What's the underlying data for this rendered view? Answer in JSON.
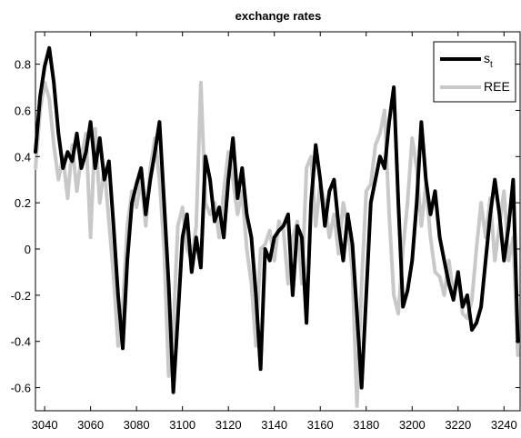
{
  "chart_data": {
    "type": "line",
    "title": "exchange rates",
    "xlabel": "",
    "ylabel": "",
    "xlim": [
      3036,
      3247
    ],
    "ylim": [
      -0.7,
      0.94
    ],
    "x_ticks": [
      3040,
      3060,
      3080,
      3100,
      3120,
      3140,
      3160,
      3180,
      3200,
      3220,
      3240
    ],
    "y_ticks": [
      -0.6,
      -0.4,
      -0.2,
      0,
      0.2,
      0.4,
      0.6,
      0.8
    ],
    "y_tick_labels": [
      "-0.6",
      "-0.4",
      "-0.2",
      "0",
      "0.2",
      "0.4",
      "0.6",
      "0.8"
    ],
    "grid": false,
    "legend_position": "top-right",
    "series": [
      {
        "name": "s",
        "name_subscript": "t",
        "color": "#000000",
        "x": [
          3036,
          3038,
          3040,
          3042,
          3044,
          3046,
          3048,
          3050,
          3052,
          3054,
          3056,
          3058,
          3060,
          3062,
          3064,
          3066,
          3068,
          3070,
          3072,
          3074,
          3076,
          3078,
          3080,
          3082,
          3084,
          3086,
          3088,
          3090,
          3092,
          3094,
          3096,
          3098,
          3100,
          3102,
          3104,
          3106,
          3108,
          3110,
          3112,
          3114,
          3116,
          3118,
          3120,
          3122,
          3124,
          3126,
          3128,
          3130,
          3132,
          3134,
          3136,
          3138,
          3140,
          3142,
          3144,
          3146,
          3148,
          3150,
          3152,
          3154,
          3156,
          3158,
          3160,
          3162,
          3164,
          3166,
          3168,
          3170,
          3172,
          3174,
          3176,
          3178,
          3180,
          3182,
          3184,
          3186,
          3188,
          3190,
          3192,
          3194,
          3196,
          3198,
          3200,
          3202,
          3204,
          3206,
          3208,
          3210,
          3212,
          3214,
          3216,
          3218,
          3220,
          3222,
          3224,
          3226,
          3228,
          3230,
          3232,
          3234,
          3236,
          3238,
          3240,
          3242,
          3244,
          3246
        ],
        "values": [
          0.42,
          0.66,
          0.79,
          0.87,
          0.72,
          0.5,
          0.35,
          0.42,
          0.38,
          0.5,
          0.35,
          0.42,
          0.55,
          0.35,
          0.48,
          0.3,
          0.38,
          0.1,
          -0.2,
          -0.43,
          -0.05,
          0.2,
          0.28,
          0.35,
          0.15,
          0.3,
          0.42,
          0.55,
          0.2,
          -0.15,
          -0.62,
          -0.3,
          0.05,
          0.15,
          -0.1,
          0.05,
          -0.08,
          0.4,
          0.3,
          0.12,
          0.18,
          0.05,
          0.3,
          0.48,
          0.22,
          0.35,
          0.15,
          0.05,
          -0.2,
          -0.52,
          0,
          -0.05,
          0.05,
          0.08,
          0.1,
          0.15,
          -0.2,
          0.1,
          0.05,
          -0.32,
          0.2,
          0.45,
          0.3,
          0.1,
          0.25,
          0.3,
          0.1,
          -0.05,
          0.15,
          0.02,
          -0.28,
          -0.6,
          -0.2,
          0.2,
          0.3,
          0.4,
          0.35,
          0.55,
          0.7,
          0.2,
          -0.25,
          -0.18,
          -0.05,
          0.2,
          0.55,
          0.3,
          0.15,
          0.25,
          0.05,
          -0.05,
          -0.15,
          -0.22,
          -0.1,
          -0.25,
          -0.2,
          -0.35,
          -0.32,
          -0.25,
          -0.05,
          0.15,
          0.3,
          0.15,
          -0.05,
          0.1,
          0.3,
          -0.4
        ]
      },
      {
        "name": "REE",
        "color": "#c8c8c8",
        "x": [
          3036,
          3038,
          3040,
          3042,
          3044,
          3046,
          3048,
          3050,
          3052,
          3054,
          3056,
          3058,
          3060,
          3062,
          3064,
          3066,
          3068,
          3070,
          3072,
          3074,
          3076,
          3078,
          3080,
          3082,
          3084,
          3086,
          3088,
          3090,
          3092,
          3094,
          3096,
          3098,
          3100,
          3102,
          3104,
          3106,
          3108,
          3110,
          3112,
          3114,
          3116,
          3118,
          3120,
          3122,
          3124,
          3126,
          3128,
          3130,
          3132,
          3134,
          3136,
          3138,
          3140,
          3142,
          3144,
          3146,
          3148,
          3150,
          3152,
          3154,
          3156,
          3158,
          3160,
          3162,
          3164,
          3166,
          3168,
          3170,
          3172,
          3174,
          3176,
          3178,
          3180,
          3182,
          3184,
          3186,
          3188,
          3190,
          3192,
          3194,
          3196,
          3198,
          3200,
          3202,
          3204,
          3206,
          3208,
          3210,
          3212,
          3214,
          3216,
          3218,
          3220,
          3222,
          3224,
          3226,
          3228,
          3230,
          3232,
          3234,
          3236,
          3238,
          3240,
          3242,
          3244,
          3246
        ],
        "values": [
          0.35,
          0.6,
          0.72,
          0.65,
          0.45,
          0.3,
          0.4,
          0.22,
          0.45,
          0.25,
          0.4,
          0.5,
          0.05,
          0.52,
          0.2,
          0.35,
          0.12,
          -0.12,
          -0.42,
          -0.25,
          0.1,
          0.25,
          0.18,
          0.3,
          0.1,
          0.35,
          0.48,
          0.3,
          0,
          -0.55,
          -0.35,
          0.1,
          0.18,
          0,
          -0.05,
          0.1,
          0.72,
          0.2,
          0.15,
          0.2,
          0.05,
          0.25,
          0.42,
          0.3,
          0.15,
          0.25,
          0,
          -0.15,
          -0.42,
          0,
          0.02,
          0.08,
          -0.05,
          0.12,
          0.08,
          -0.15,
          0.05,
          0.12,
          -0.15,
          0.35,
          0.4,
          0.1,
          0.28,
          0.2,
          0.05,
          0.15,
          -0.02,
          0.2,
          0.1,
          -0.1,
          -0.68,
          -0.15,
          0.25,
          0.28,
          0.45,
          0.5,
          0.6,
          0.15,
          -0.2,
          -0.28,
          0,
          0.2,
          0.48,
          0.35,
          0.1,
          0.28,
          0.05,
          -0.1,
          -0.12,
          -0.2,
          -0.05,
          -0.2,
          -0.1,
          -0.28,
          -0.3,
          -0.22,
          0,
          0.2,
          0.05,
          0.22,
          -0.05,
          0.1,
          0.25,
          -0.05,
          0.05,
          -0.46
        ]
      }
    ]
  }
}
